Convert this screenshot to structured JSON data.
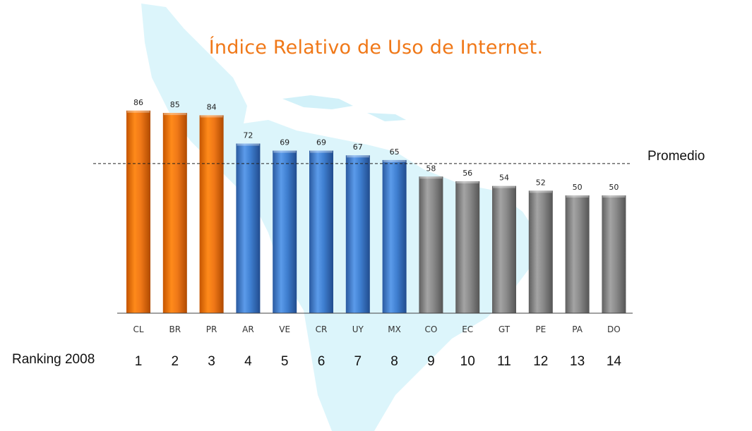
{
  "chart_data": {
    "type": "bar",
    "title": "Índice Relativo de Uso de Internet.",
    "categories": [
      "CL",
      "BR",
      "PR",
      "AR",
      "VE",
      "CR",
      "UY",
      "MX",
      "CO",
      "EC",
      "GT",
      "PE",
      "PA",
      "DO"
    ],
    "values": [
      86,
      85,
      84,
      72,
      69,
      69,
      67,
      65,
      58,
      56,
      54,
      52,
      50,
      50
    ],
    "ranks": [
      "1",
      "2",
      "3",
      "4",
      "5",
      "6",
      "7",
      "8",
      "9",
      "10",
      "11",
      "12",
      "13",
      "14"
    ],
    "rank_label": "Ranking 2008",
    "reference_line": {
      "label": "Promedio",
      "value": 63.5,
      "style": "dashed"
    },
    "groups": [
      "orange",
      "orange",
      "orange",
      "blue",
      "blue",
      "blue",
      "blue",
      "blue",
      "gray",
      "gray",
      "gray",
      "gray",
      "gray",
      "gray"
    ],
    "ylim": [
      0,
      100
    ],
    "grid": false,
    "legend": "none"
  },
  "colors": {
    "title": "#f07818",
    "orange": "#f07818",
    "blue": "#3f7fd0",
    "gray": "#8a8a8a",
    "map": "#d8f4fb"
  }
}
